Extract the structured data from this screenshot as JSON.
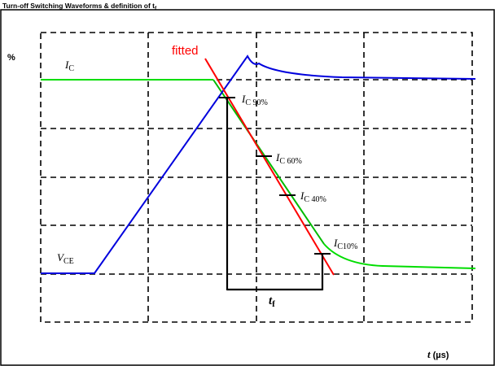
{
  "title": {
    "text": "Turn-off Switching Waveforms & definition of t",
    "subscript": "f"
  },
  "labels": {
    "percent": "%",
    "fitted": "fitted",
    "ic": {
      "main": "I",
      "sub": "C"
    },
    "vce": {
      "main": "V",
      "sub": "CE"
    },
    "ic90": {
      "main": "I",
      "sub": "C 90%"
    },
    "ic60": {
      "main": "I",
      "sub": "C 60%"
    },
    "ic40": {
      "main": "I",
      "sub": "C 40%"
    },
    "ic10": {
      "main": "I",
      "sub": "C10%"
    },
    "tf": {
      "main": "t",
      "sub": "f"
    },
    "time_axis": {
      "var": "t",
      "unit": "(µs)"
    }
  },
  "colors": {
    "collector_current": "#00dd00",
    "collector_emitter_voltage": "#0000dd",
    "fitted_line": "#ff0000",
    "grid": "#000000"
  }
}
